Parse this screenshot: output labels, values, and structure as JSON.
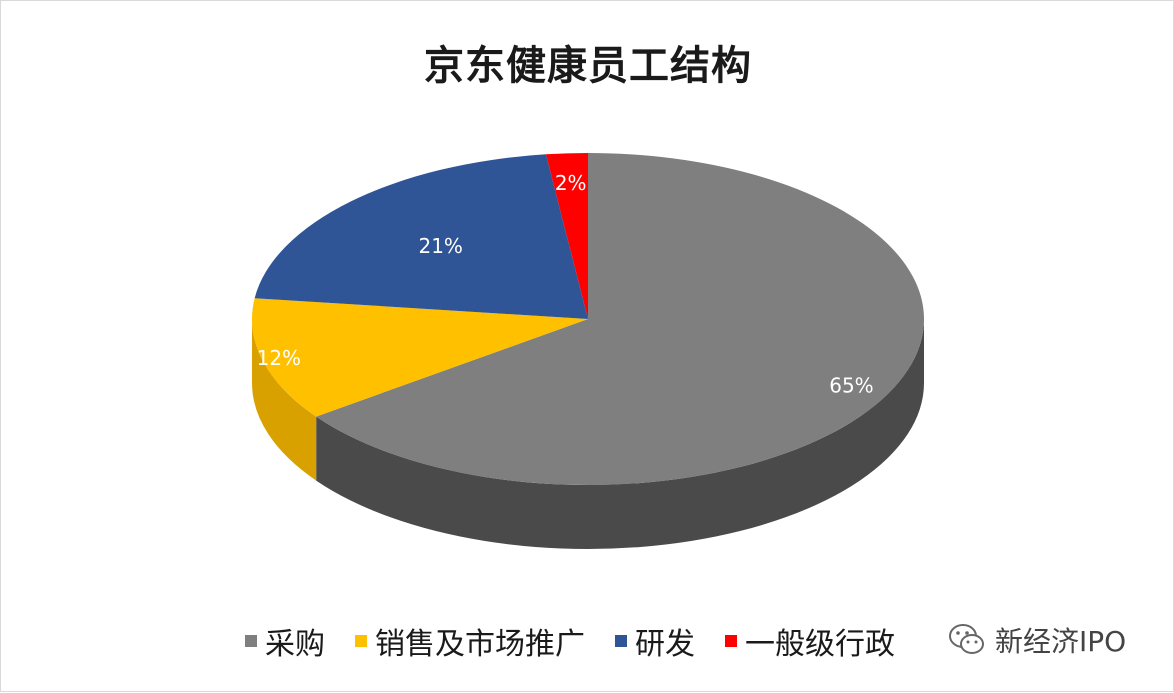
{
  "chart_data": {
    "type": "pie",
    "title": "京东健康员工结构",
    "categories": [
      "采购",
      "销售及市场推广",
      "研发",
      "一般级行政"
    ],
    "values": [
      65,
      12,
      21,
      2
    ],
    "data_labels": [
      "65%",
      "12%",
      "21%",
      "2%"
    ],
    "colors": [
      "#7f7f7f",
      "#ffc000",
      "#2f5597",
      "#ff0000"
    ],
    "side_colors": [
      "#4a4a4a",
      "#d9a100",
      "#1d3a6e",
      "#b00000"
    ],
    "legend_position": "bottom",
    "style": "3d-tilted"
  },
  "watermark": {
    "text": "新经济IPO",
    "icon": "wechat-icon"
  }
}
